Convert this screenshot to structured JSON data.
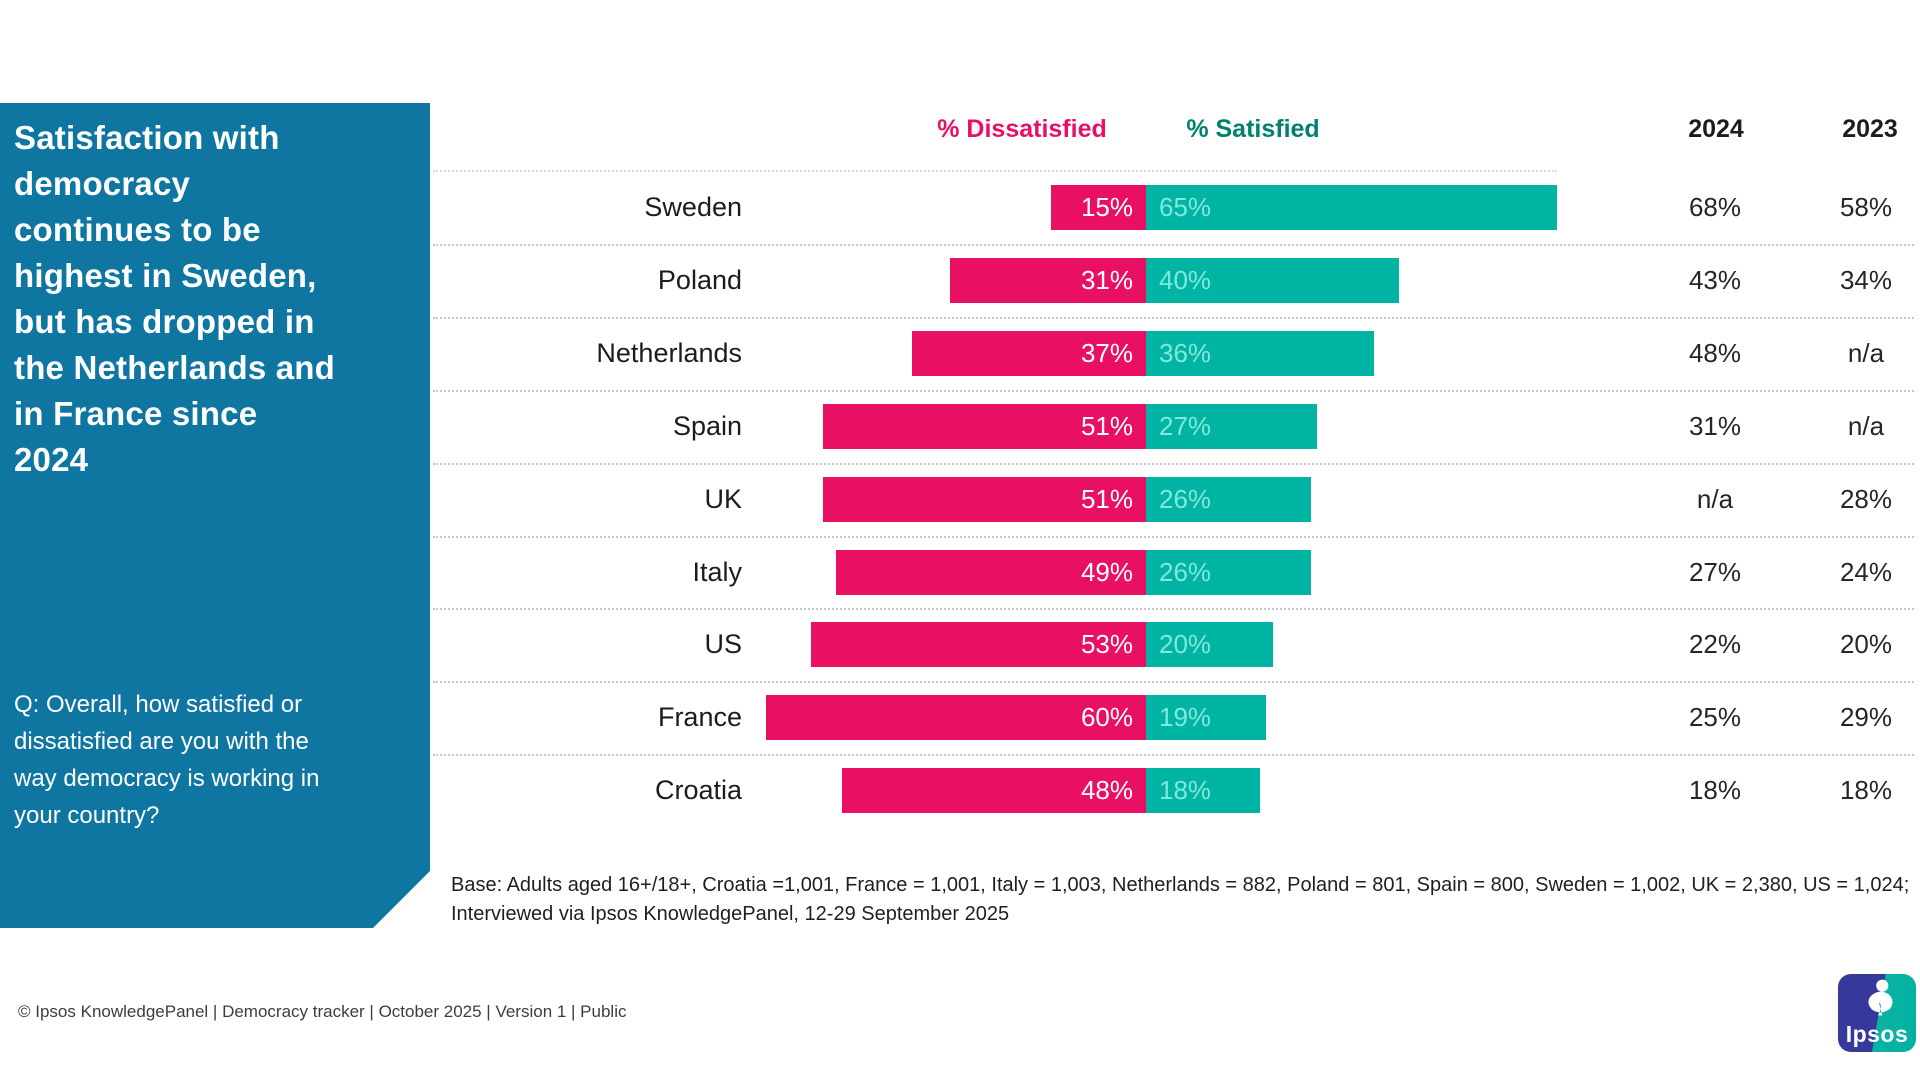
{
  "sidebar": {
    "headline": "Satisfaction with\ndemocracy\ncontinues to be\nhighest in Sweden,\nbut has dropped in\nthe Netherlands and\nin France since\n2024",
    "question": "Q: Overall, how satisfied or\ndissatisfied are you with the\nway democracy is working in\nyour country?"
  },
  "chart_data": {
    "type": "bar",
    "subtype": "diverging-horizontal",
    "value_suffix": "%",
    "categories": [
      "Sweden",
      "Poland",
      "Netherlands",
      "Spain",
      "UK",
      "Italy",
      "US",
      "France",
      "Croatia"
    ],
    "series": [
      {
        "name": "% Dissatisfied",
        "color": "#e91063",
        "values": [
          15,
          31,
          37,
          51,
          51,
          49,
          53,
          60,
          48
        ]
      },
      {
        "name": "% Satisfied",
        "color": "#00b4a4",
        "values": [
          65,
          40,
          36,
          27,
          26,
          26,
          20,
          19,
          18
        ]
      }
    ],
    "extra_columns": [
      {
        "header": "2024",
        "values": [
          "68%",
          "43%",
          "48%",
          "31%",
          "n/a",
          "27%",
          "22%",
          "25%",
          "18%"
        ]
      },
      {
        "header": "2023",
        "values": [
          "58%",
          "34%",
          "n/a",
          "n/a",
          "28%",
          "24%",
          "20%",
          "29%",
          "18%"
        ]
      }
    ],
    "axis": {
      "zero_centered": true,
      "unit": "percent",
      "grid": "dotted-row-separators",
      "legend_position": "top"
    }
  },
  "footnote": {
    "line1": "Base: Adults aged 16+/18+, Croatia =1,001, France = 1,001, Italy = 1,003, Netherlands = 882, Poland = 801, Spain = 800, Sweden = 1,002, UK = 2,380, US = 1,024;",
    "line2": "Interviewed via Ipsos KnowledgePanel, 12-29 September 2025"
  },
  "footer": {
    "text": "© Ipsos KnowledgePanel | Democracy tracker | October 2025 | Version 1 | Public"
  },
  "logo": {
    "brand": "Ipsos"
  },
  "colors": {
    "dissatisfied_pink": "#e91063",
    "satisfied_teal": "#00b4a4",
    "satisfied_bar_text": "#7fe9de",
    "satisfied_header_teal": "#00806e",
    "sidebar_blue": "#0f76a2",
    "logo_indigo": "#36389b",
    "logo_teal": "#00b1a0"
  }
}
